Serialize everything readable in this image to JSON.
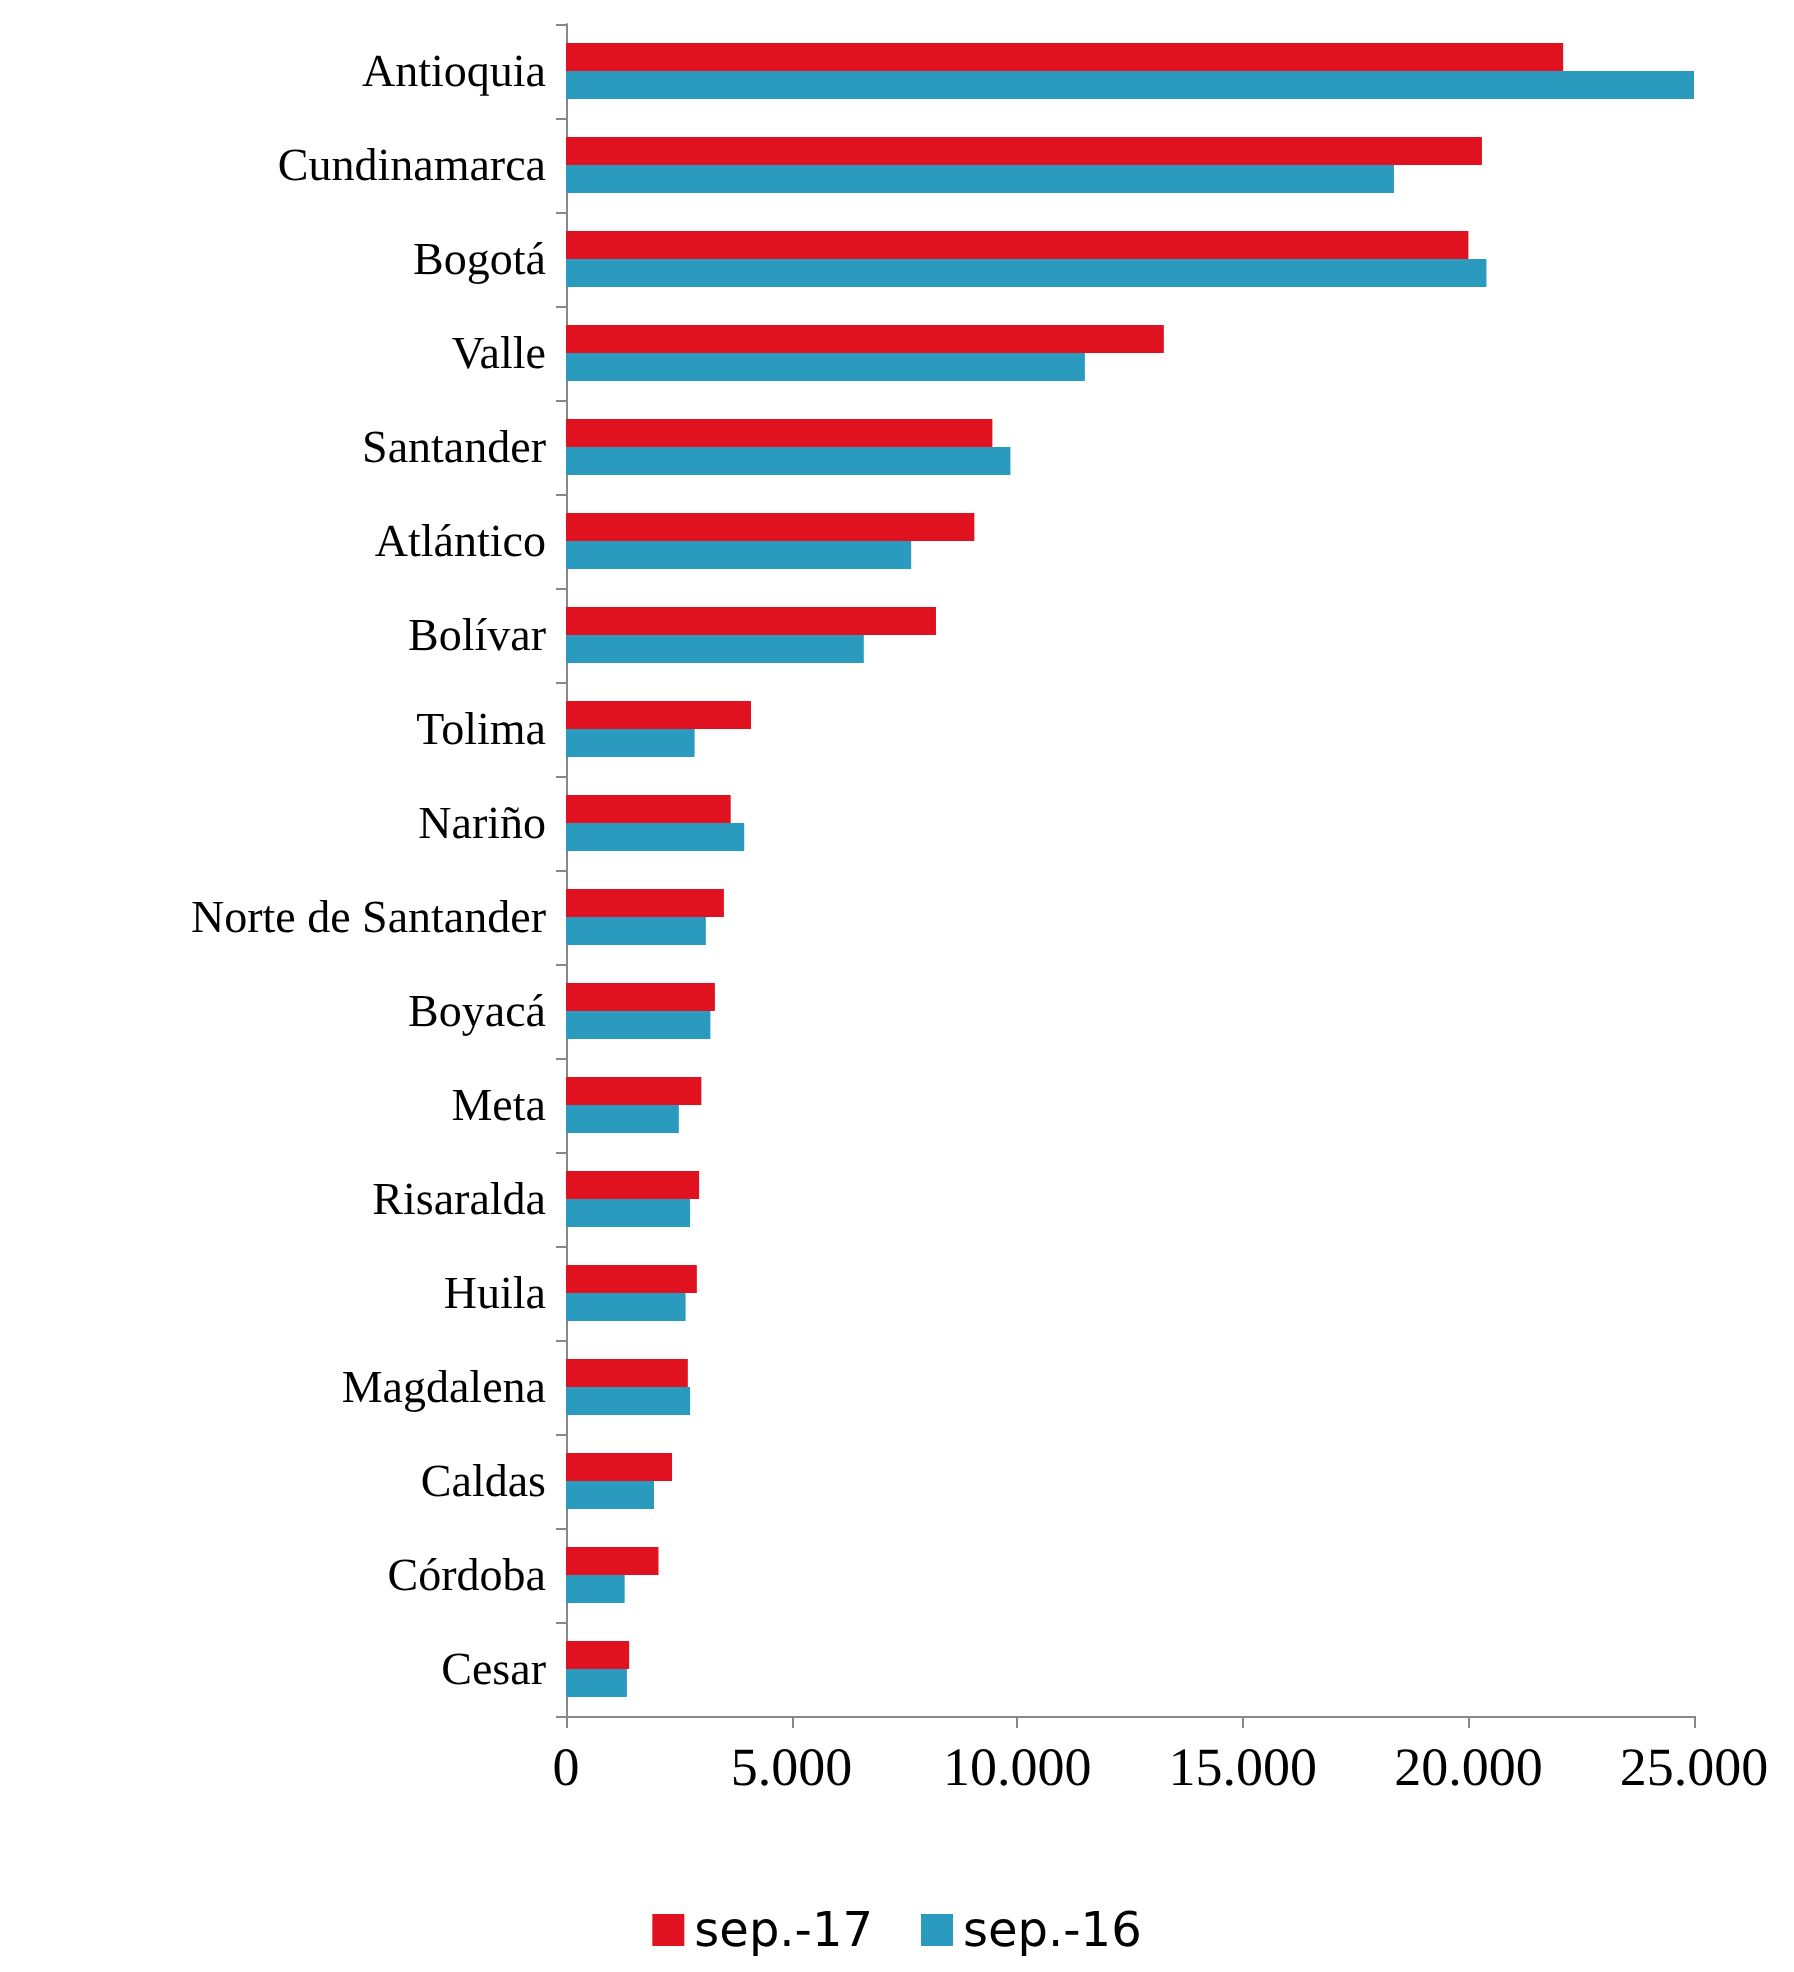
{
  "chart_data": {
    "type": "bar",
    "orientation": "horizontal",
    "categories": [
      "Antioquia",
      "Cundinamarca",
      "Bogotá",
      "Valle",
      "Santander",
      "Atlántico",
      "Bolívar",
      "Tolima",
      "Nariño",
      "Norte de Santander",
      "Boyacá",
      "Meta",
      "Risaralda",
      "Huila",
      "Magdalena",
      "Caldas",
      "Córdoba",
      "Cesar"
    ],
    "series": [
      {
        "name": "sep.-17",
        "color": "#e0121f",
        "values": [
          22100,
          20300,
          20000,
          13250,
          9450,
          9050,
          8200,
          4100,
          3650,
          3500,
          3300,
          3000,
          2950,
          2900,
          2700,
          2350,
          2050,
          1400
        ]
      },
      {
        "name": "sep.-16",
        "color": "#2a9bbf",
        "values": [
          25000,
          18350,
          20400,
          11500,
          9850,
          7650,
          6600,
          2850,
          3950,
          3100,
          3200,
          2500,
          2750,
          2650,
          2750,
          1950,
          1300,
          1350
        ]
      }
    ],
    "xlim": [
      0,
      25000
    ],
    "xticks": [
      0,
      {
        "value": 5000,
        "label": "5.000"
      },
      {
        "value": 10000,
        "label": "10.000"
      },
      {
        "value": 15000,
        "label": "15.000"
      },
      {
        "value": 20000,
        "label": "20.000"
      },
      {
        "value": 25000,
        "label": "25.000"
      }
    ],
    "grid": false,
    "legend": "bottom"
  }
}
